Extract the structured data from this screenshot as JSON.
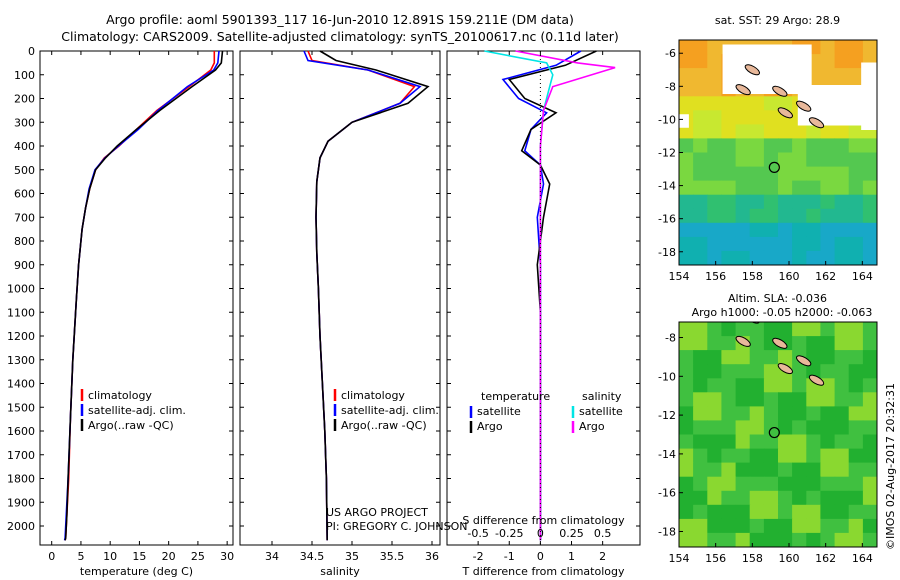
{
  "figure": {
    "title_line1": "Argo profile: aoml 5901393_117 16-Jun-2010 12.891S 159.211E (DM data)",
    "title_line2": "Climatology: CARS2009. Satellite-adjusted climatology: synTS_20100617.nc (0.11d later)",
    "credit": "©IMOS 02-Aug-2017 20:32:31",
    "project_line1": "US ARGO PROJECT",
    "project_line2": "PI: GREGORY C. JOHNSON"
  },
  "colors": {
    "climatology": "#ff0000",
    "satellite": "#0000ff",
    "argo": "#000000",
    "sal_satellite": "#00e5e5",
    "sal_argo": "#ff00ff"
  },
  "chart_data": [
    {
      "type": "line",
      "panel": "temperature",
      "xlabel": "temperature (deg C)",
      "xlim": [
        -2,
        31
      ],
      "xticks": [
        0,
        5,
        10,
        15,
        20,
        25,
        30
      ],
      "ylim": [
        2080,
        0
      ],
      "yticks": [
        0,
        100,
        200,
        300,
        400,
        500,
        600,
        700,
        800,
        900,
        1000,
        1100,
        1200,
        1300,
        1400,
        1500,
        1600,
        1700,
        1800,
        1900,
        2000
      ],
      "legend": [
        "climatology",
        "satellite-adj. clim.",
        "Argo(..raw -QC)"
      ],
      "series": [
        {
          "name": "climatology",
          "color": "#ff0000",
          "x": [
            27.8,
            27.8,
            27.2,
            23.5,
            18.0,
            14.5,
            11.5,
            9.0,
            7.5,
            6.5,
            5.8,
            5.2,
            4.6,
            4.2,
            3.6,
            3.2,
            2.9,
            2.6,
            2.4,
            2.3
          ],
          "y": [
            0,
            50,
            80,
            150,
            250,
            330,
            400,
            450,
            500,
            580,
            660,
            750,
            900,
            1050,
            1300,
            1550,
            1800,
            1950,
            2050,
            2060
          ]
        },
        {
          "name": "satellite-adj. clim.",
          "color": "#0000ff",
          "x": [
            28.6,
            28.4,
            27.7,
            23.2,
            18.2,
            14.8,
            11.4,
            9.1,
            7.4,
            6.4,
            5.8,
            5.2,
            4.6,
            4.2,
            3.6,
            3.2,
            2.8,
            2.5,
            2.3,
            2.2
          ],
          "y": [
            0,
            50,
            80,
            150,
            250,
            330,
            400,
            450,
            500,
            580,
            660,
            750,
            900,
            1050,
            1300,
            1550,
            1800,
            1950,
            2050,
            2060
          ]
        },
        {
          "name": "Argo(..raw -QC)",
          "color": "#000000",
          "x": [
            29.2,
            29.0,
            28.0,
            24.0,
            18.5,
            14.5,
            11.2,
            9.2,
            7.5,
            6.5,
            5.8,
            5.2,
            4.6,
            4.2,
            3.6,
            3.2,
            2.8,
            2.6,
            2.4,
            2.3
          ],
          "y": [
            0,
            50,
            80,
            150,
            250,
            330,
            400,
            450,
            500,
            580,
            660,
            750,
            900,
            1050,
            1300,
            1550,
            1800,
            1950,
            2050,
            2060
          ]
        }
      ]
    },
    {
      "type": "line",
      "panel": "salinity",
      "xlabel": "salinity",
      "xlim": [
        33.6,
        36.1
      ],
      "xticks": [
        34,
        34.5,
        35,
        35.5,
        36
      ],
      "ylim": [
        2080,
        0
      ],
      "legend": [
        "climatology",
        "satellite-adj. clim.",
        "Argo(..raw -QC)"
      ],
      "series": [
        {
          "name": "climatology",
          "color": "#ff0000",
          "x": [
            34.45,
            34.5,
            35.2,
            35.78,
            35.6,
            35.0,
            34.7,
            34.6,
            34.56,
            34.55,
            34.56,
            34.58,
            34.6,
            34.63,
            34.66,
            34.68,
            34.69
          ],
          "y": [
            0,
            40,
            80,
            150,
            220,
            300,
            380,
            450,
            550,
            700,
            850,
            1000,
            1200,
            1400,
            1600,
            1800,
            2060
          ]
        },
        {
          "name": "satellite-adj. clim.",
          "color": "#0000ff",
          "x": [
            34.4,
            34.45,
            35.2,
            35.85,
            35.6,
            35.0,
            34.7,
            34.6,
            34.56,
            34.55,
            34.56,
            34.58,
            34.6,
            34.63,
            34.66,
            34.68,
            34.69
          ],
          "y": [
            0,
            40,
            80,
            150,
            220,
            300,
            380,
            450,
            550,
            700,
            850,
            1000,
            1200,
            1400,
            1600,
            1800,
            2060
          ]
        },
        {
          "name": "Argo(..raw -QC)",
          "color": "#000000",
          "x": [
            34.6,
            34.8,
            35.3,
            35.95,
            35.7,
            35.0,
            34.7,
            34.6,
            34.56,
            34.55,
            34.56,
            34.58,
            34.6,
            34.63,
            34.66,
            34.68,
            34.69
          ],
          "y": [
            0,
            40,
            80,
            150,
            220,
            300,
            380,
            450,
            550,
            700,
            850,
            1000,
            1200,
            1400,
            1600,
            1800,
            2060
          ]
        }
      ]
    },
    {
      "type": "line",
      "panel": "difference",
      "xlabel_top": "S difference from climatology",
      "xlabel_bottom": "T difference from climatology",
      "xticks_T": [
        -2,
        -1,
        0,
        1,
        2
      ],
      "xticks_S_labels": [
        "-0.5",
        "-0.25",
        "0",
        "0.25",
        "0.5"
      ],
      "xlim": [
        -3.0,
        3.2
      ],
      "ylim": [
        2080,
        0
      ],
      "legend_titles": [
        "temperature",
        "salinity"
      ],
      "legend": [
        "satellite",
        "Argo",
        "satellite",
        "Argo"
      ],
      "series": [
        {
          "name": "temperature satellite",
          "color": "#0000ff",
          "x": [
            1.3,
            0.5,
            -1.2,
            -0.7,
            0.2,
            -0.3,
            -0.5,
            0,
            0.1,
            -0.1,
            0,
            0,
            0,
            0
          ],
          "y": [
            0,
            60,
            120,
            200,
            260,
            330,
            420,
            480,
            560,
            700,
            900,
            1200,
            1600,
            2060
          ]
        },
        {
          "name": "temperature Argo",
          "color": "#000000",
          "x": [
            1.8,
            0.8,
            -1.0,
            -0.5,
            0.5,
            -0.3,
            -0.6,
            0,
            0.3,
            0.1,
            -0.1,
            0,
            0,
            0
          ],
          "y": [
            0,
            60,
            120,
            200,
            260,
            330,
            420,
            480,
            560,
            700,
            900,
            1100,
            1600,
            2060
          ]
        },
        {
          "name": "salinity satellite",
          "color": "#00e5e5",
          "x": [
            -1.8,
            0.2,
            0.4,
            0.3,
            0.1,
            0,
            0,
            0,
            0,
            0,
            0
          ],
          "y": [
            0,
            50,
            100,
            150,
            250,
            400,
            600,
            900,
            1200,
            1600,
            2060
          ]
        },
        {
          "name": "salinity Argo",
          "color": "#ff00ff",
          "x": [
            -0.8,
            1.2,
            2.4,
            0.4,
            0.1,
            0,
            0,
            0,
            0,
            0,
            0
          ],
          "y": [
            0,
            50,
            70,
            150,
            250,
            400,
            600,
            900,
            1200,
            1600,
            2060
          ]
        }
      ]
    },
    {
      "type": "heatmap",
      "panel": "sst-map",
      "title": "sat. SST: 29 Argo: 28.9",
      "xticks": [
        154,
        156,
        158,
        160,
        162,
        164
      ],
      "yticks": [
        -6,
        -8,
        -10,
        -12,
        -14,
        -16,
        -18
      ]
    },
    {
      "type": "heatmap",
      "panel": "sla-map",
      "title_line1": "Altim. SLA: -0.036",
      "title_line2": "Argo h1000: -0.05 h2000: -0.063",
      "xticks": [
        154,
        156,
        158,
        160,
        162,
        164
      ],
      "yticks": [
        -8,
        -10,
        -12,
        -14,
        -16,
        -18
      ]
    }
  ]
}
